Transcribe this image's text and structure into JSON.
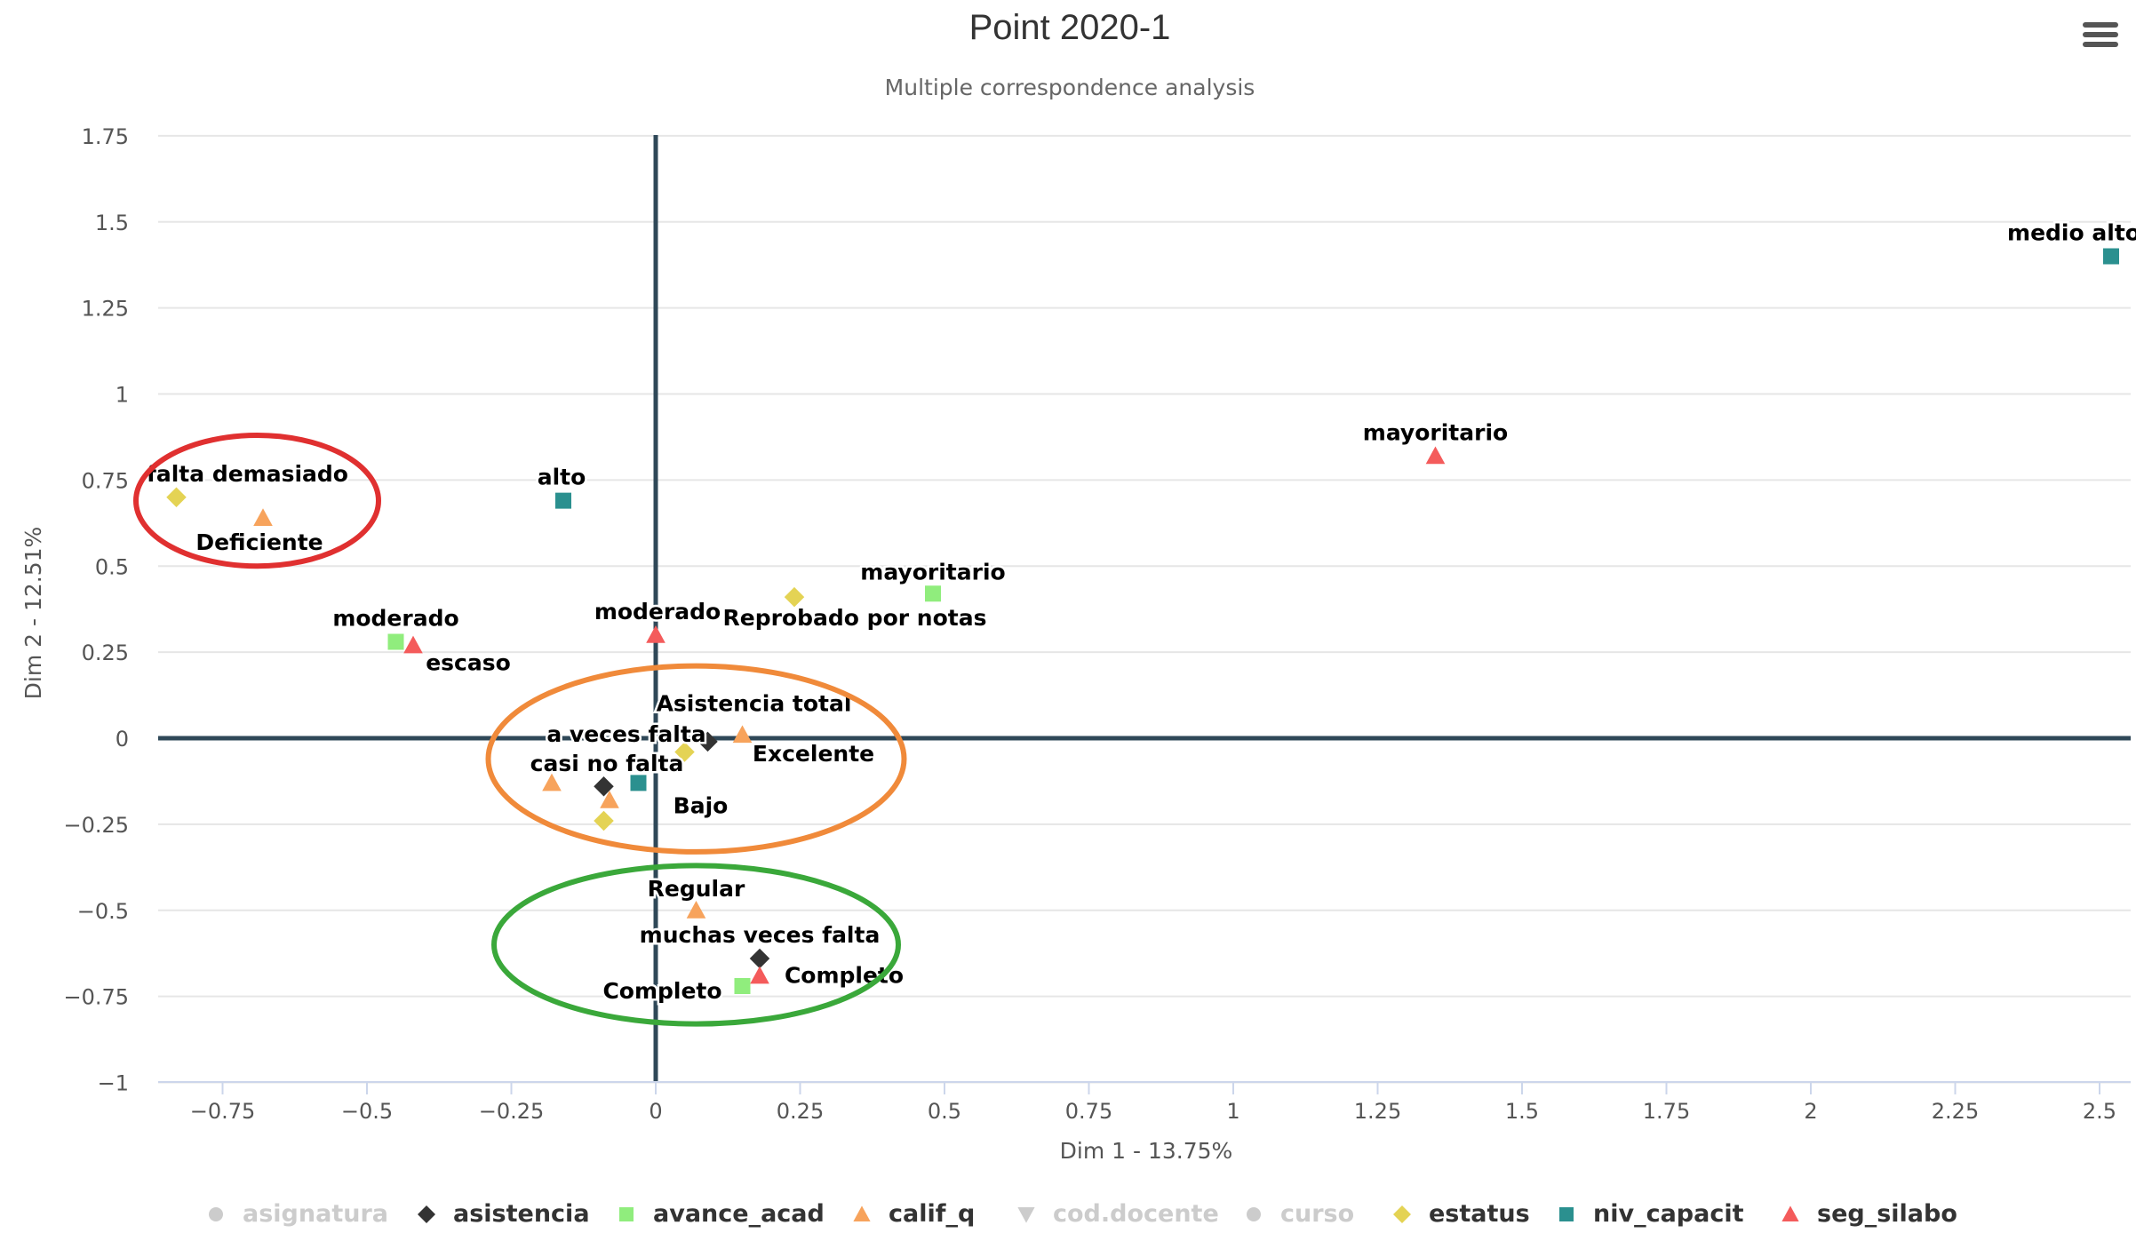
{
  "chart_data": {
    "type": "scatter",
    "title": "Point 2020-1",
    "subtitle": "Multiple correspondence analysis",
    "xlabel": "Dim 1 - 13.75%",
    "ylabel": "Dim 2 - 12.51%",
    "xlim": [
      -0.85,
      2.55
    ],
    "ylim": [
      -1,
      1.75
    ],
    "xticks": [
      -0.75,
      -0.5,
      -0.25,
      0,
      0.25,
      0.5,
      0.75,
      1,
      1.25,
      1.5,
      1.75,
      2,
      2.25,
      2.5
    ],
    "xtick_labels": [
      "−0.75",
      "−0.5",
      "−0.25",
      "0",
      "0.25",
      "0.5",
      "0.75",
      "1",
      "1.25",
      "1.5",
      "1.75",
      "2",
      "2.25",
      "2.5"
    ],
    "yticks": [
      1.75,
      1.5,
      1.25,
      1,
      0.75,
      0.5,
      0.25,
      0,
      -0.25,
      -0.5,
      -0.75,
      -1
    ],
    "ytick_labels": [
      "1.75",
      "1.5",
      "1.25",
      "1",
      "0.75",
      "0.5",
      "0.25",
      "0",
      "−0.25",
      "−0.5",
      "−0.75",
      "−1"
    ],
    "grid": "horizontal",
    "legend_position": "bottom",
    "series": [
      {
        "name": "asignatura",
        "marker": "circle",
        "color": "#cccccc",
        "visible": false,
        "points": []
      },
      {
        "name": "asistencia",
        "marker": "diamond",
        "color": "#333333",
        "visible": true,
        "points": [
          {
            "x": 0.09,
            "y": -0.01,
            "label": ""
          },
          {
            "x": -0.09,
            "y": -0.14,
            "label": ""
          },
          {
            "x": 0.18,
            "y": -0.64,
            "label": "muchas veces falta"
          }
        ]
      },
      {
        "name": "avance_acad",
        "marker": "square",
        "color": "#90ed7d",
        "visible": true,
        "points": [
          {
            "x": -0.45,
            "y": 0.28,
            "label": "moderado"
          },
          {
            "x": 0.48,
            "y": 0.42,
            "label": "mayoritario"
          },
          {
            "x": 0.15,
            "y": -0.72,
            "label": "Completo"
          }
        ]
      },
      {
        "name": "calif_q",
        "marker": "triangle",
        "color": "#f7a35c",
        "visible": true,
        "points": [
          {
            "x": -0.68,
            "y": 0.64,
            "label": "Deficiente"
          },
          {
            "x": 0.15,
            "y": 0.01,
            "label": "Excelente"
          },
          {
            "x": -0.18,
            "y": -0.13,
            "label": ""
          },
          {
            "x": -0.08,
            "y": -0.18,
            "label": ""
          },
          {
            "x": 0.07,
            "y": -0.5,
            "label": "Regular"
          }
        ]
      },
      {
        "name": "cod.docente",
        "marker": "triangle-down",
        "color": "#cccccc",
        "visible": false,
        "points": []
      },
      {
        "name": "curso",
        "marker": "circle",
        "color": "#cccccc",
        "visible": false,
        "points": []
      },
      {
        "name": "estatus",
        "marker": "diamond",
        "color": "#e4d354",
        "visible": true,
        "points": [
          {
            "x": -0.83,
            "y": 0.7,
            "label": "falta demasiado"
          },
          {
            "x": 0.24,
            "y": 0.41,
            "label": "Reprobado por notas"
          },
          {
            "x": 0.05,
            "y": -0.04,
            "label": "Asistencia total"
          },
          {
            "x": -0.09,
            "y": -0.24,
            "label": ""
          }
        ]
      },
      {
        "name": "niv_capacit",
        "marker": "square",
        "color": "#2b908f",
        "visible": true,
        "points": [
          {
            "x": 2.52,
            "y": 1.4,
            "label": "medio alto"
          },
          {
            "x": -0.16,
            "y": 0.69,
            "label": "alto"
          },
          {
            "x": -0.03,
            "y": -0.13,
            "label": "Bajo"
          }
        ]
      },
      {
        "name": "seg_silabo",
        "marker": "triangle",
        "color": "#f45b5b",
        "visible": true,
        "points": [
          {
            "x": 1.35,
            "y": 0.82,
            "label": "mayoritario"
          },
          {
            "x": 0.0,
            "y": 0.3,
            "label": "moderado"
          },
          {
            "x": -0.42,
            "y": 0.27,
            "label": "escaso"
          },
          {
            "x": 0.18,
            "y": -0.69,
            "label": "Completo"
          }
        ]
      }
    ],
    "free_labels": [
      "a veces falta",
      "casi no falta"
    ],
    "annotations": [
      {
        "shape": "ellipse",
        "color": "#e03030",
        "cx": -0.69,
        "cy": 0.69,
        "rx": 0.21,
        "ry": 0.19
      },
      {
        "shape": "ellipse",
        "color": "#f08a3a",
        "cx": 0.07,
        "cy": -0.06,
        "rx": 0.36,
        "ry": 0.27
      },
      {
        "shape": "ellipse",
        "color": "#3aa83a",
        "cx": 0.07,
        "cy": -0.6,
        "rx": 0.35,
        "ry": 0.23
      }
    ]
  },
  "menu": {
    "icon": "hamburger-menu-icon"
  }
}
